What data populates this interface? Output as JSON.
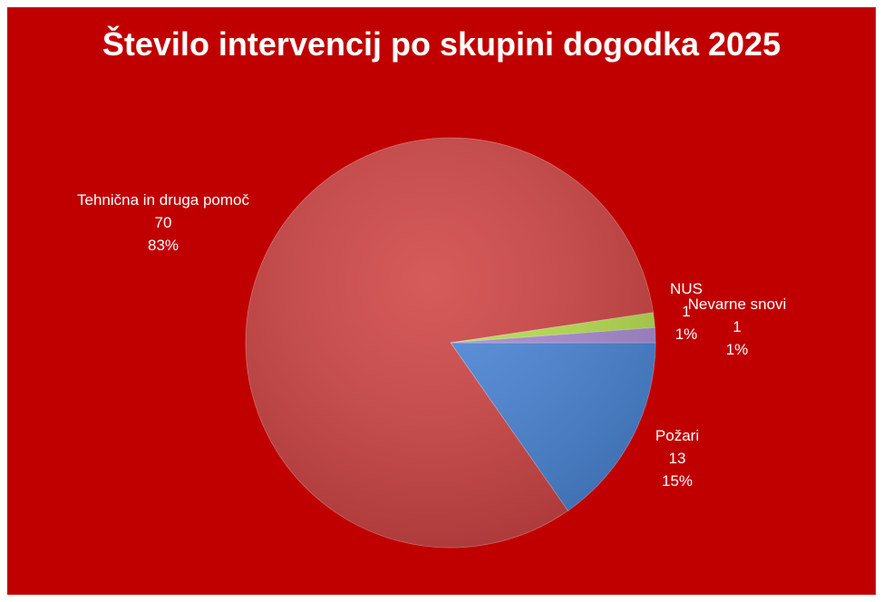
{
  "chart_data": {
    "type": "pie",
    "title": "Število intervencij po skupini dogodka 2025",
    "categories": [
      "Požari",
      "Tehnična in druga pomoč",
      "NUS",
      "Nevarne snovi"
    ],
    "values": [
      13,
      70,
      1,
      1
    ],
    "percent_labels": [
      "15%",
      "83%",
      "1%",
      "1%"
    ],
    "colors": [
      "#4a86d8",
      "#d04444",
      "#b8e050",
      "#a98cd4"
    ]
  }
}
